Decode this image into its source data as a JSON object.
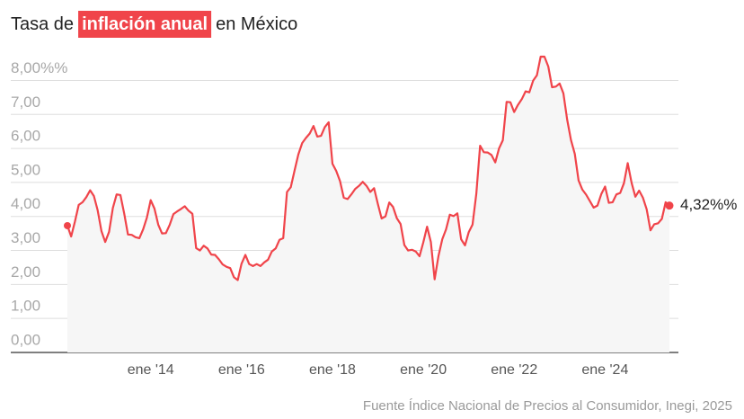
{
  "chart_data": {
    "type": "line",
    "title": {
      "before": "Tasa de",
      "highlight": "inflación anual",
      "after": "en México"
    },
    "source": "Fuente Índice Nacional de Precios al Consumidor, Inegi, 2025",
    "categories": [
      null,
      null,
      null,
      null,
      null,
      null,
      null,
      null,
      null,
      null,
      null,
      null,
      null,
      null,
      null,
      null,
      null,
      null,
      null,
      null,
      null,
      null,
      "ene '14",
      null,
      null,
      null,
      null,
      null,
      null,
      null,
      null,
      null,
      null,
      null,
      null,
      null,
      null,
      null,
      null,
      null,
      null,
      null,
      null,
      null,
      null,
      null,
      "ene '16",
      null,
      null,
      null,
      null,
      null,
      null,
      null,
      null,
      null,
      null,
      null,
      null,
      null,
      null,
      null,
      null,
      null,
      null,
      null,
      null,
      null,
      null,
      null,
      "ene '18",
      null,
      null,
      null,
      null,
      null,
      null,
      null,
      null,
      null,
      null,
      null,
      null,
      null,
      null,
      null,
      null,
      null,
      null,
      null,
      null,
      null,
      null,
      null,
      "ene '20",
      null,
      null,
      null,
      null,
      null,
      null,
      null,
      null,
      null,
      null,
      null,
      null,
      null,
      null,
      null,
      null,
      null,
      null,
      null,
      null,
      null,
      null,
      null,
      "ene '22",
      null,
      null,
      null,
      null,
      null,
      null,
      null,
      null,
      null,
      null,
      null,
      null,
      null,
      null,
      null,
      null,
      null,
      null,
      null,
      null,
      null,
      null,
      null,
      "ene '24",
      null,
      null,
      null,
      null,
      null,
      null,
      null,
      null,
      null,
      null,
      null,
      null,
      null,
      null,
      null,
      null,
      null
    ],
    "series": [
      {
        "color": "#f0444a",
        "values": [
          3.73,
          3.41,
          3.85,
          4.34,
          4.42,
          4.57,
          4.77,
          4.6,
          4.18,
          3.57,
          3.25,
          3.55,
          4.25,
          4.65,
          4.63,
          4.09,
          3.47,
          3.46,
          3.39,
          3.36,
          3.62,
          3.97,
          4.48,
          4.23,
          3.76,
          3.5,
          3.51,
          3.75,
          4.07,
          4.15,
          4.22,
          4.3,
          4.17,
          4.08,
          3.07,
          3.0,
          3.14,
          3.06,
          2.88,
          2.87,
          2.74,
          2.59,
          2.52,
          2.48,
          2.21,
          2.13,
          2.61,
          2.87,
          2.6,
          2.54,
          2.6,
          2.54,
          2.65,
          2.73,
          2.97,
          3.06,
          3.31,
          3.36,
          4.72,
          4.86,
          5.35,
          5.82,
          6.16,
          6.31,
          6.44,
          6.66,
          6.35,
          6.37,
          6.63,
          6.77,
          5.55,
          5.34,
          5.04,
          4.55,
          4.51,
          4.65,
          4.81,
          4.9,
          5.02,
          4.9,
          4.72,
          4.83,
          4.37,
          3.94,
          4.0,
          4.41,
          4.28,
          3.95,
          3.78,
          3.16,
          3.0,
          3.02,
          2.97,
          2.83,
          3.24,
          3.7,
          3.25,
          2.15,
          2.84,
          3.33,
          3.62,
          4.05,
          4.01,
          4.09,
          3.33,
          3.15,
          3.54,
          3.76,
          4.67,
          6.08,
          5.89,
          5.88,
          5.81,
          5.59,
          6.0,
          6.24,
          7.37,
          7.36,
          7.07,
          7.28,
          7.45,
          7.68,
          7.65,
          7.99,
          8.15,
          8.7,
          8.7,
          8.41,
          7.8,
          7.82,
          7.91,
          7.62,
          6.85,
          6.25,
          5.84,
          5.06,
          4.79,
          4.64,
          4.45,
          4.26,
          4.32,
          4.66,
          4.88,
          4.4,
          4.42,
          4.65,
          4.69,
          4.98,
          5.57,
          4.99,
          4.58,
          4.76,
          4.55,
          4.21,
          3.59,
          3.77,
          3.8,
          3.93,
          4.42,
          4.32
        ],
        "value_labels": [
          null,
          null,
          null,
          null,
          null,
          null,
          null,
          null,
          null,
          null,
          null,
          null,
          null,
          null,
          null,
          null,
          null,
          null,
          null,
          null,
          null,
          null,
          null,
          null,
          null,
          null,
          null,
          null,
          null,
          null,
          null,
          null,
          null,
          null,
          null,
          null,
          null,
          null,
          null,
          null,
          null,
          null,
          null,
          null,
          null,
          null,
          null,
          null,
          null,
          null,
          null,
          null,
          null,
          null,
          null,
          null,
          null,
          null,
          null,
          null,
          null,
          null,
          null,
          null,
          null,
          null,
          null,
          null,
          null,
          null,
          null,
          null,
          null,
          null,
          null,
          null,
          null,
          null,
          null,
          null,
          null,
          null,
          null,
          null,
          null,
          null,
          null,
          null,
          null,
          null,
          null,
          null,
          null,
          null,
          null,
          null,
          null,
          null,
          null,
          null,
          null,
          null,
          null,
          null,
          null,
          null,
          null,
          null,
          null,
          null,
          null,
          null,
          null,
          null,
          null,
          null,
          null,
          null,
          null,
          null,
          null,
          null,
          null,
          null,
          null,
          null,
          null,
          null,
          null,
          null,
          null,
          null,
          null,
          null,
          null,
          null,
          null,
          null,
          null,
          null,
          null,
          null,
          null,
          null,
          null,
          null,
          null,
          null,
          null,
          null,
          null,
          null,
          null,
          null,
          null,
          null,
          null,
          null,
          null,
          "4,32%%"
        ]
      }
    ],
    "ylim": [
      0,
      8.7
    ],
    "yticks": [
      {
        "value": 0,
        "label": "0,00"
      },
      {
        "value": 1,
        "label": "1,00"
      },
      {
        "value": 2,
        "label": "2,00"
      },
      {
        "value": 3,
        "label": "3,00"
      },
      {
        "value": 4,
        "label": "4,00"
      },
      {
        "value": 5,
        "label": "5,00"
      },
      {
        "value": 6,
        "label": "6,00"
      },
      {
        "value": 7,
        "label": "7,00"
      },
      {
        "value": 8,
        "label": "8,00%%"
      }
    ],
    "grid": true
  }
}
